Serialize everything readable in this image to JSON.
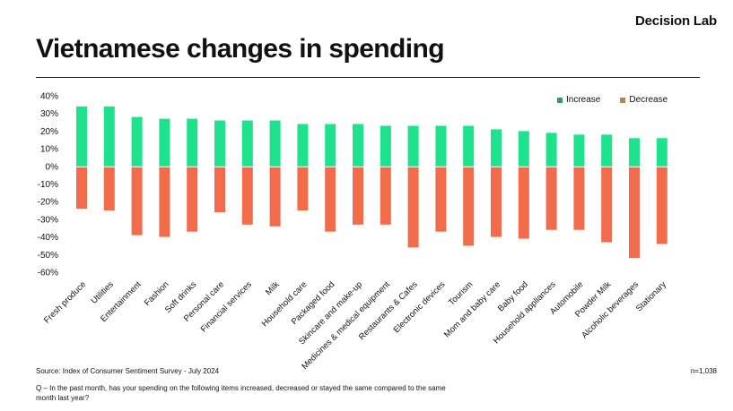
{
  "brand": "Decision Lab",
  "title": "Vietnamese changes in spending",
  "source": "Source: Index of Consumer Sentiment Survey - July 2024",
  "sample": "n=1,038",
  "question": "Q – In the past month, has your spending on the following items increased, decreased or stayed the same compared to the same month last year?",
  "colors": {
    "increase": "#1fe28c",
    "decrease": "#f26b4a",
    "increase_swatch": "#2e9b6b",
    "decrease_swatch": "#b78546"
  },
  "chart_data": {
    "type": "bar",
    "title": "",
    "xlabel": "",
    "ylabel": "",
    "ylim": [
      -60,
      40
    ],
    "yticks": [
      "40%",
      "30%",
      "20%",
      "10%",
      "0%",
      "-10%",
      "-20%",
      "-30%",
      "-40%",
      "-50%",
      "-60%"
    ],
    "legend": "top-right",
    "grid": false,
    "categories": [
      "Fresh produce",
      "Utilities",
      "Entertainment",
      "Fashion",
      "Soft drinks",
      "Personal care",
      "Financial services",
      "Milk",
      "Household care",
      "Packaged food",
      "Skincare and make-up",
      "Medicines & medical equipment",
      "Restaurants & Cafes",
      "Electronic devices",
      "Tourism",
      "Mom and baby care",
      "Baby food",
      "Household appliances",
      "Automobile",
      "Powder Milk",
      "Alcoholic beverages",
      "Stationary"
    ],
    "series": [
      {
        "name": "Increase",
        "values": [
          34,
          34,
          28,
          27,
          27,
          26,
          26,
          26,
          24,
          24,
          24,
          23,
          23,
          23,
          23,
          21,
          20,
          19,
          18,
          18,
          16,
          16
        ]
      },
      {
        "name": "Decrease",
        "values": [
          -24,
          -25,
          -39,
          -40,
          -37,
          -26,
          -33,
          -34,
          -25,
          -37,
          -33,
          -33,
          -46,
          -37,
          -45,
          -40,
          -41,
          -36,
          -36,
          -43,
          -52,
          -44
        ]
      }
    ]
  }
}
